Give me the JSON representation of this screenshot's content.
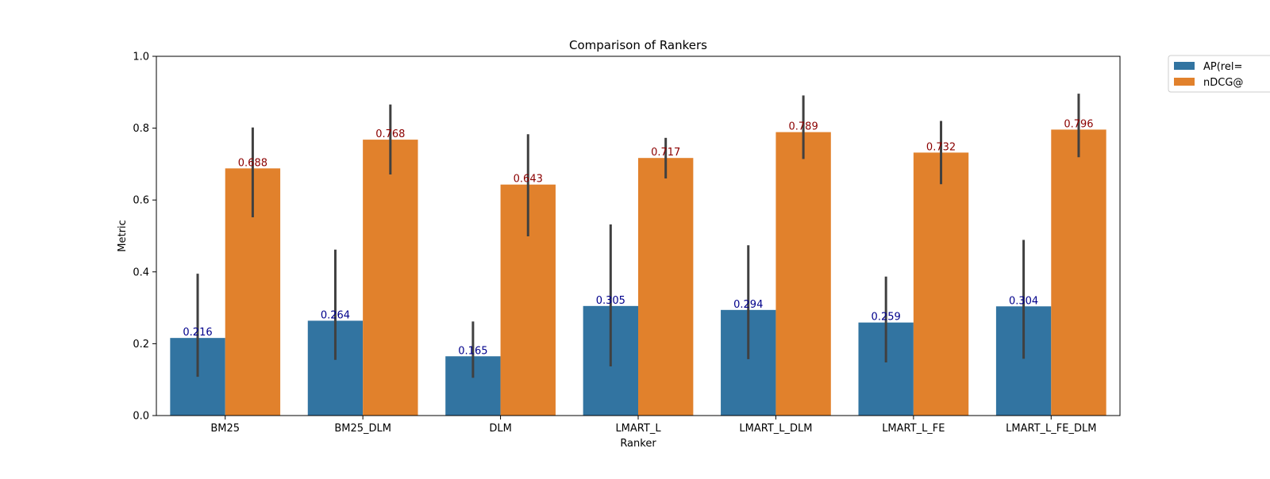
{
  "chart_data": {
    "type": "bar",
    "title": "Comparison of Rankers",
    "xlabel": "Ranker",
    "ylabel": "Metric",
    "ylim": [
      0,
      1.0
    ],
    "yticks": [
      "0.0",
      "0.2",
      "0.4",
      "0.6",
      "0.8",
      "1.0"
    ],
    "categories": [
      "BM25",
      "BM25_DLM",
      "DLM",
      "LMART_L",
      "LMART_L_DLM",
      "LMART_L_FE",
      "LMART_L_FE_DLM"
    ],
    "series": [
      {
        "name": "AP(rel=",
        "color": "#3274a1",
        "label_color": "#00008b",
        "values": [
          0.216,
          0.264,
          0.165,
          0.305,
          0.294,
          0.259,
          0.304
        ],
        "labels": [
          "0.216",
          "0.264",
          "0.165",
          "0.305",
          "0.294",
          "0.259",
          "0.304"
        ],
        "ci_low": [
          0.108,
          0.155,
          0.105,
          0.137,
          0.157,
          0.148,
          0.158
        ],
        "ci_high": [
          0.395,
          0.462,
          0.262,
          0.532,
          0.474,
          0.387,
          0.489
        ]
      },
      {
        "name": "nDCG@",
        "color": "#e1812c",
        "label_color": "#8b0000",
        "values": [
          0.688,
          0.768,
          0.643,
          0.717,
          0.789,
          0.732,
          0.796
        ],
        "labels": [
          "0.688",
          "0.768",
          "0.643",
          "0.717",
          "0.789",
          "0.732",
          "0.796"
        ],
        "ci_low": [
          0.552,
          0.671,
          0.499,
          0.66,
          0.714,
          0.644,
          0.719
        ],
        "ci_high": [
          0.802,
          0.866,
          0.783,
          0.773,
          0.891,
          0.82,
          0.896
        ]
      }
    ],
    "grid": false,
    "legend_position": "outside-top-right",
    "error_bar_color": "#404040"
  }
}
